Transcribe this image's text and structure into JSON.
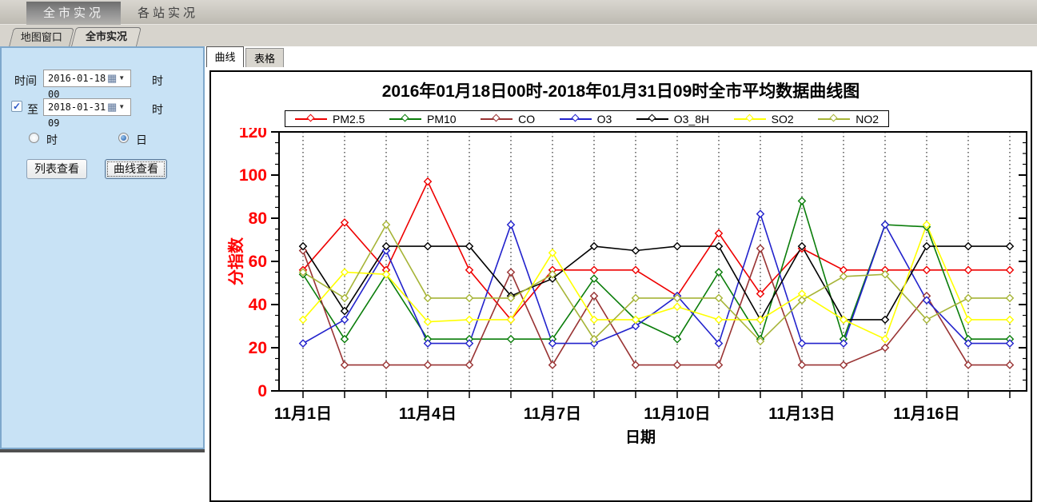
{
  "topbar": {
    "tabs": [
      {
        "label": "全市实况",
        "active": true
      },
      {
        "label": "各站实况",
        "active": false
      }
    ]
  },
  "subtabs": [
    {
      "label": "地图窗口",
      "active": false
    },
    {
      "label": "全市实况",
      "active": true
    }
  ],
  "sidebar": {
    "time_label": "时间",
    "time_value": "2016-01-18 00",
    "time_suffix": "时",
    "to_checkbox_checked": "✓",
    "to_label": "至",
    "to_value": "2018-01-31 09",
    "to_suffix": "时",
    "radio_hour_label": "时",
    "radio_day_label": "日",
    "list_button": "列表查看",
    "curve_button": "曲线查看"
  },
  "content_tabs": [
    {
      "label": "曲线",
      "active": true
    },
    {
      "label": "表格",
      "active": false
    }
  ],
  "chart_data": {
    "type": "line",
    "title": "2016年01月18日00时-2018年01月31日09时全市平均数据曲线图",
    "ylabel": "分指数",
    "xlabel": "日期",
    "ylim": [
      0,
      120
    ],
    "ytick_step": 20,
    "yminor_step": 5,
    "axis_label_color": "#ff0000",
    "grid": "vertical-dotted",
    "legend_position": "top",
    "x_days": 18,
    "x_tick_positions": [
      1,
      4,
      7,
      10,
      13,
      16
    ],
    "x_tick_labels": [
      "11月1日",
      "11月4日",
      "11月7日",
      "11月10日",
      "11月13日",
      "11月16日"
    ],
    "series": [
      {
        "name": "PM2.5",
        "color": "#ee0000",
        "values": [
          56,
          78,
          56,
          97,
          56,
          33,
          56,
          56,
          56,
          44,
          73,
          45,
          66,
          56,
          56,
          56,
          56,
          56
        ]
      },
      {
        "name": "PM10",
        "color": "#0a7d0a",
        "values": [
          54,
          24,
          54,
          24,
          24,
          24,
          24,
          52,
          33,
          24,
          55,
          24,
          88,
          24,
          77,
          76,
          24,
          24
        ]
      },
      {
        "name": "CO",
        "color": "#993333",
        "values": [
          65,
          12,
          12,
          12,
          12,
          55,
          12,
          44,
          12,
          12,
          12,
          66,
          12,
          12,
          20,
          44,
          12,
          12
        ]
      },
      {
        "name": "O3",
        "color": "#2222cc",
        "values": [
          22,
          33,
          65,
          22,
          22,
          77,
          22,
          22,
          30,
          44,
          22,
          82,
          22,
          22,
          77,
          42,
          22,
          22
        ]
      },
      {
        "name": "O3_8H",
        "color": "#000000",
        "values": [
          67,
          37,
          67,
          67,
          67,
          44,
          52,
          67,
          65,
          67,
          67,
          33,
          67,
          33,
          33,
          67,
          67,
          67
        ]
      },
      {
        "name": "SO2",
        "color": "#ffff00",
        "values": [
          33,
          55,
          54,
          32,
          33,
          33,
          64,
          33,
          33,
          39,
          33,
          33,
          45,
          33,
          24,
          77,
          33,
          33
        ]
      },
      {
        "name": "NO2",
        "color": "#a6b437",
        "values": [
          55,
          43,
          77,
          43,
          43,
          43,
          54,
          24,
          43,
          43,
          43,
          23,
          42,
          53,
          54,
          33,
          43,
          43
        ]
      }
    ]
  }
}
